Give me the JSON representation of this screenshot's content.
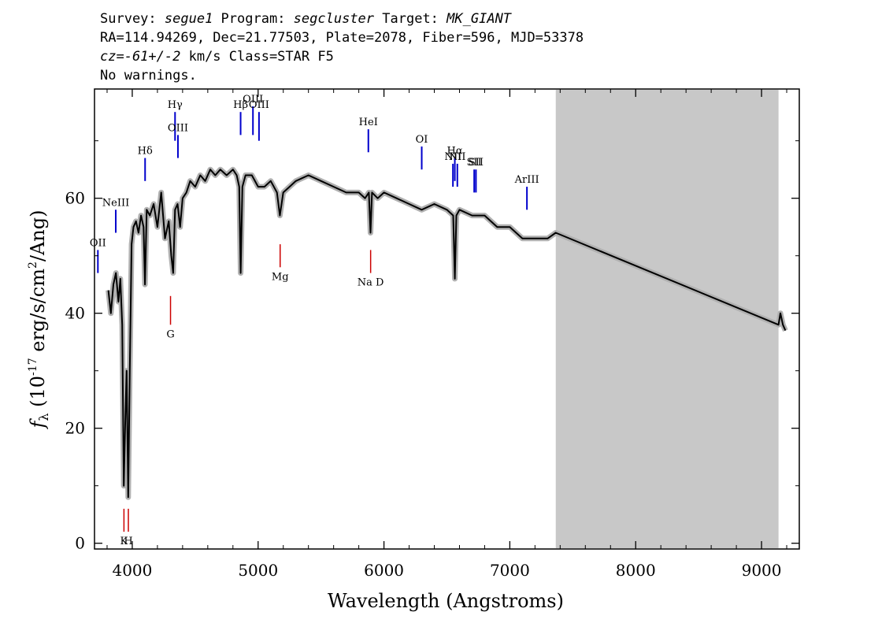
{
  "header": {
    "line1": [
      {
        "t": "Survey: ",
        "i": false
      },
      {
        "t": "segue1",
        "i": true
      },
      {
        "t": " Program: ",
        "i": false
      },
      {
        "t": "segcluster",
        "i": true
      },
      {
        "t": " Target: ",
        "i": false
      },
      {
        "t": "MK_GIANT",
        "i": true
      }
    ],
    "line2": "RA=114.94269, Dec=21.77503, Plate=2078, Fiber=596, MJD=53378",
    "line3": [
      {
        "t": "cz=-61+/-2",
        "i": true
      },
      {
        "t": " km/s Class=STAR F5",
        "i": false
      }
    ],
    "line4": "No warnings."
  },
  "chart_data": {
    "type": "line",
    "xlabel": "Wavelength (Angstroms)",
    "ylabel_parts": {
      "f": "f",
      "sub": "λ",
      "pre": "(10",
      "exp1": "-17",
      "mid": " erg/s/cm",
      "exp2": "2",
      "post": "/Ang)"
    },
    "xlim": [
      3700,
      9300
    ],
    "ylim": [
      -1,
      79
    ],
    "x_ticks": [
      4000,
      5000,
      6000,
      7000,
      8000,
      9000
    ],
    "x_tick_labels": [
      "4000",
      "5000",
      "6000",
      "7000",
      "8000",
      "9000"
    ],
    "y_ticks": [
      0,
      20,
      40,
      60
    ],
    "y_tick_labels": [
      "0",
      "20",
      "40",
      "60"
    ],
    "masked_region": [
      7365,
      9135
    ],
    "series": [
      {
        "color": "#000000",
        "x": [
          3810,
          3830,
          3850,
          3870,
          3890,
          3905,
          3920,
          3933,
          3945,
          3955,
          3968,
          3980,
          3995,
          4010,
          4030,
          4050,
          4070,
          4090,
          4101,
          4115,
          4140,
          4170,
          4200,
          4230,
          4260,
          4290,
          4310,
          4325,
          4340,
          4360,
          4380,
          4400,
          4430,
          4460,
          4500,
          4540,
          4580,
          4620,
          4660,
          4700,
          4750,
          4800,
          4830,
          4850,
          4861,
          4875,
          4900,
          4950,
          5000,
          5050,
          5100,
          5150,
          5173,
          5200,
          5250,
          5300,
          5400,
          5500,
          5600,
          5700,
          5800,
          5850,
          5880,
          5893,
          5905,
          5950,
          6000,
          6100,
          6200,
          6300,
          6400,
          6500,
          6550,
          6563,
          6575,
          6600,
          6700,
          6800,
          6900,
          7000,
          7100,
          7200,
          7300,
          7365,
          9135,
          9150,
          9170,
          9190
        ],
        "y": [
          44,
          40,
          45,
          47,
          42,
          46,
          38,
          10,
          22,
          30,
          8,
          30,
          52,
          55,
          56,
          54,
          57,
          55,
          45,
          58,
          57,
          59,
          55,
          61,
          53,
          56,
          50,
          47,
          58,
          59,
          55,
          60,
          61,
          63,
          62,
          64,
          63,
          65,
          64,
          65,
          64,
          65,
          64,
          62,
          47,
          62,
          64,
          64,
          62,
          62,
          63,
          61,
          57,
          61,
          62,
          63,
          64,
          63,
          62,
          61,
          61,
          60,
          61,
          54,
          61,
          60,
          61,
          60,
          59,
          58,
          59,
          58,
          57,
          46,
          57,
          58,
          57,
          57,
          55,
          55,
          53,
          53,
          53,
          54,
          38,
          40,
          38,
          37
        ]
      }
    ],
    "emission_lines": [
      {
        "label": "OII",
        "x": 3727,
        "y1": 47,
        "y2": 51
      },
      {
        "label": "NeIII",
        "x": 3869,
        "y1": 54,
        "y2": 58
      },
      {
        "label": "Hδ",
        "x": 4102,
        "y1": 63,
        "y2": 67
      },
      {
        "label": "Hγ",
        "x": 4340,
        "y1": 70,
        "y2": 75
      },
      {
        "label": "OIII",
        "x": 4363,
        "y1": 67,
        "y2": 71
      },
      {
        "label": "Hβ",
        "x": 4861,
        "y1": 71,
        "y2": 75
      },
      {
        "label": "OIII",
        "x": 4959,
        "y1": 71,
        "y2": 76
      },
      {
        "label": "OIII",
        "x": 5007,
        "y1": 70,
        "y2": 75
      },
      {
        "label": "HeI",
        "x": 5876,
        "y1": 68,
        "y2": 72
      },
      {
        "label": "OI",
        "x": 6300,
        "y1": 65,
        "y2": 69
      },
      {
        "label": "NII",
        "x": 6548,
        "y1": 62,
        "y2": 66
      },
      {
        "label": "Hα",
        "x": 6563,
        "y1": 63,
        "y2": 67
      },
      {
        "label": "NII",
        "x": 6583,
        "y1": 62,
        "y2": 66
      },
      {
        "label": "SII",
        "x": 6717,
        "y1": 61,
        "y2": 65
      },
      {
        "label": "SII",
        "x": 6731,
        "y1": 61,
        "y2": 65
      },
      {
        "label": "ArIII",
        "x": 7136,
        "y1": 58,
        "y2": 62
      }
    ],
    "absorption_lines": [
      {
        "label": "K",
        "x": 3934,
        "y1": 2,
        "y2": 6
      },
      {
        "label": "H",
        "x": 3969,
        "y1": 2,
        "y2": 6
      },
      {
        "label": "G",
        "x": 4304,
        "y1": 38,
        "y2": 43
      },
      {
        "label": "Mg",
        "x": 5175,
        "y1": 48,
        "y2": 52
      },
      {
        "label": "Na D",
        "x": 5894,
        "y1": 47,
        "y2": 51
      }
    ],
    "emission_color": "#0000cc",
    "absorption_color": "#cc0000",
    "grid": false
  }
}
